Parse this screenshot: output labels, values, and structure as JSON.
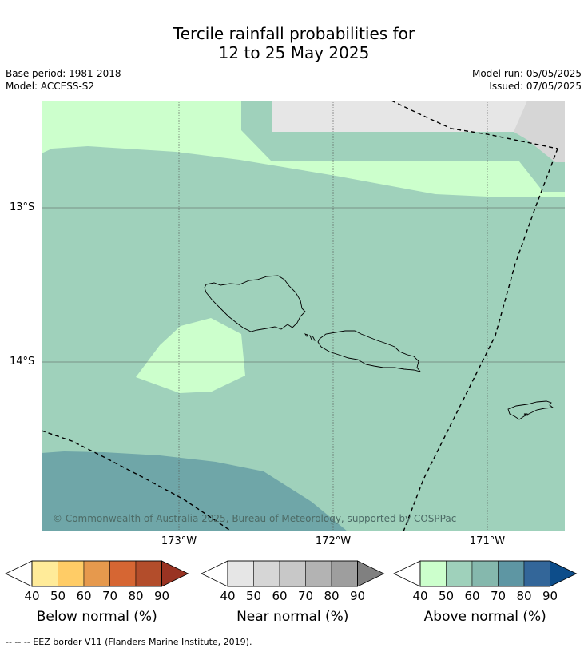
{
  "title": {
    "line1": "Tercile rainfall probabilities for",
    "line2": "12 to 25 May 2025"
  },
  "meta": {
    "base_period": "Base period: 1981-2018",
    "model": "Model: ACCESS-S2",
    "model_run": "Model run: 05/05/2025",
    "issued": "Issued: 07/05/2025"
  },
  "map": {
    "copyright": "© Commonwealth of Australia 2025, Bureau of Meteorology, supported by COSPPac",
    "lat_labels": [
      "13°S",
      "14°S"
    ],
    "lon_labels": [
      "173°W",
      "172°W",
      "171°W"
    ],
    "colors": {
      "above_40_50": "#ccffcc",
      "above_50_60": "#9fd1bb",
      "above_60_70": "#6fa6a8",
      "near_40_50": "#e6e6e6",
      "near_50_60": "#d6d6d6",
      "grid": "#555555",
      "coast": "#000000"
    }
  },
  "colorbars": [
    {
      "label": "Below normal (%)",
      "ticks": [
        "40",
        "50",
        "60",
        "70",
        "80",
        "90"
      ],
      "colors": [
        "#ffeb99",
        "#ffcc66",
        "#e6994d",
        "#d66633",
        "#b34d2b",
        "#993322"
      ]
    },
    {
      "label": "Near normal (%)",
      "ticks": [
        "40",
        "50",
        "60",
        "70",
        "80",
        "90"
      ],
      "colors": [
        "#e6e6e6",
        "#d6d6d6",
        "#c8c8c8",
        "#b3b3b3",
        "#9e9e9e",
        "#808080"
      ]
    },
    {
      "label": "Above normal (%)",
      "ticks": [
        "40",
        "50",
        "60",
        "70",
        "80",
        "90"
      ],
      "colors": [
        "#ccffcc",
        "#9fd1bb",
        "#85b8ad",
        "#5e96a3",
        "#336699",
        "#0d4d8a"
      ]
    }
  ],
  "footnote": "--  --  -- EEZ border V11 (Flanders Marine Institute, 2019)."
}
